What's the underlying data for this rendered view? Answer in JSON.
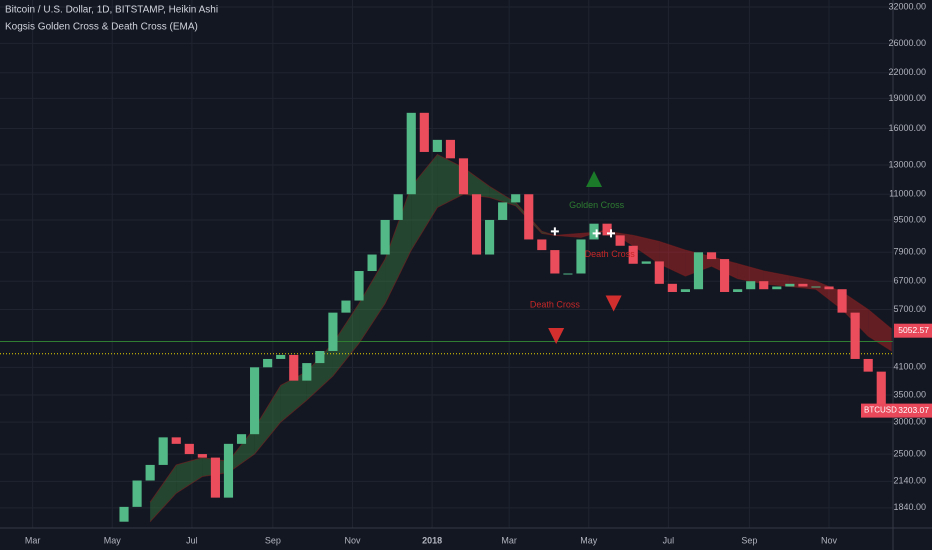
{
  "chart_data": {
    "type": "candlestick",
    "title": "Bitcoin / U.S. Dollar, 1D, BITSTAMP, Heikin Ashi",
    "subtitle": "Kogsis Golden Cross & Death Cross (EMA)",
    "log_scale": true,
    "grid": true,
    "up_color": "#53b987",
    "down_color": "#eb4d5c",
    "x": [
      70,
      80,
      90,
      100,
      110,
      120,
      130,
      140,
      150,
      160,
      170,
      180,
      190,
      200,
      210,
      220,
      230,
      240,
      250,
      260,
      270,
      280,
      290,
      300,
      310,
      320,
      330,
      340,
      350,
      360,
      370,
      380,
      390,
      400,
      410,
      420,
      430,
      440,
      450,
      460,
      470,
      480,
      490,
      500,
      510,
      520,
      530,
      540,
      550,
      560,
      570,
      580,
      590,
      600,
      610,
      620,
      630,
      640,
      650
    ],
    "open": [
      1700,
      1850,
      2150,
      2350,
      2750,
      2650,
      2500,
      2450,
      1950,
      2650,
      2800,
      4100,
      4300,
      4400,
      3800,
      4200,
      4500,
      5600,
      6000,
      7100,
      7800,
      9500,
      11000,
      17500,
      14000,
      15000,
      13500,
      11000,
      7800,
      9500,
      10500,
      11000,
      8500,
      8000,
      7000,
      7000,
      8500,
      9300,
      8700,
      8200,
      7400,
      7500,
      6600,
      6300,
      6400,
      7900,
      7600,
      6300,
      6400,
      6700,
      6400,
      6500,
      6600,
      6500,
      6500,
      6400,
      5600,
      4300,
      4000
    ],
    "close": [
      1850,
      2150,
      2350,
      2750,
      2650,
      2500,
      2450,
      1950,
      2650,
      2800,
      4100,
      4300,
      4400,
      3800,
      4200,
      4500,
      5600,
      6000,
      7100,
      7800,
      9500,
      11000,
      17500,
      14000,
      15000,
      13500,
      11000,
      7800,
      9500,
      10500,
      11000,
      8500,
      8000,
      7000,
      7000,
      8500,
      9300,
      8700,
      8200,
      7400,
      7500,
      6600,
      6300,
      6400,
      7900,
      7600,
      6300,
      6400,
      6700,
      6400,
      6500,
      6600,
      6500,
      6500,
      6400,
      5600,
      4300,
      4000,
      3300
    ],
    "bands": {
      "x": [
        90,
        110,
        130,
        150,
        170,
        190,
        210,
        230,
        250,
        270,
        290,
        310,
        330,
        350,
        370,
        390,
        400,
        420,
        440,
        460,
        480,
        500,
        520,
        540,
        560,
        580,
        600,
        620,
        640,
        658
      ],
      "fast": [
        1900,
        2350,
        2450,
        2400,
        2900,
        3700,
        4000,
        4700,
        5900,
        7600,
        11500,
        13800,
        12800,
        11500,
        10500,
        8900,
        8700,
        8600,
        9000,
        8200,
        7400,
        6900,
        7300,
        6800,
        6600,
        6500,
        6400,
        5700,
        4900,
        4500
      ],
      "slow": [
        1700,
        2000,
        2200,
        2250,
        2500,
        3000,
        3400,
        3900,
        4700,
        5900,
        8000,
        10200,
        11000,
        10800,
        10300,
        8800,
        8700,
        8800,
        8900,
        8700,
        8400,
        8000,
        7700,
        7400,
        7100,
        6900,
        6700,
        6300,
        5700,
        5100
      ],
      "golden_color": "#4caf50",
      "death_color": "#c62828"
    },
    "annotations": [
      {
        "text": "Golden Cross",
        "x": 432,
        "y": 10300,
        "color": "#2e7d32"
      },
      {
        "text": "Death Cross",
        "x": 400,
        "y": 5850,
        "color": "#c62828"
      },
      {
        "text": "Death Cross",
        "x": 442,
        "y": 7800,
        "color": "#c62828"
      }
    ],
    "arrows": [
      {
        "x": 430,
        "y": 12000,
        "direction": "up",
        "color": "#1b7a2a"
      },
      {
        "x": 401,
        "y": 4900,
        "direction": "down",
        "color": "#d32f2f"
      },
      {
        "x": 445,
        "y": 5900,
        "direction": "down",
        "color": "#d32f2f"
      }
    ],
    "cross_points": {
      "x": [
        400,
        432,
        443
      ],
      "y": [
        8900,
        8800,
        8800
      ]
    },
    "hlines": [
      {
        "value": 4750,
        "color": "#2e7d32"
      },
      {
        "value": 4430,
        "color": "#e6d300"
      }
    ],
    "price_tags": [
      {
        "value": 5052.57,
        "color": "#e8485a"
      },
      {
        "name": "BTCUSD",
        "value": 3203.07,
        "color": "#e8485a"
      }
    ],
    "xlim": [
      -25,
      659
    ],
    "ylim": [
      1640,
      33300
    ],
    "xticks": [
      {
        "value": 0,
        "label": "Mar"
      },
      {
        "value": 61,
        "label": "May"
      },
      {
        "value": 122,
        "label": "Jul"
      },
      {
        "value": 184,
        "label": "Sep"
      },
      {
        "value": 245,
        "label": "Nov"
      },
      {
        "value": 306,
        "label": "2018"
      },
      {
        "value": 365,
        "label": "Mar"
      },
      {
        "value": 426,
        "label": "May"
      },
      {
        "value": 487,
        "label": "Jul"
      },
      {
        "value": 549,
        "label": "Sep"
      },
      {
        "value": 610,
        "label": "Nov"
      }
    ],
    "yticks": [
      {
        "value": 32000,
        "label": "32000.00"
      },
      {
        "value": 26000,
        "label": "26000.00"
      },
      {
        "value": 22000,
        "label": "22000.00"
      },
      {
        "value": 19000,
        "label": "19000.00"
      },
      {
        "value": 16000,
        "label": "16000.00"
      },
      {
        "value": 13000,
        "label": "13000.00"
      },
      {
        "value": 11000,
        "label": "11000.00"
      },
      {
        "value": 9500,
        "label": "9500.00"
      },
      {
        "value": 7900,
        "label": "7900.00"
      },
      {
        "value": 6700,
        "label": "6700.00"
      },
      {
        "value": 5700,
        "label": "5700.00"
      },
      {
        "value": 4100,
        "label": "4100.00"
      },
      {
        "value": 3500,
        "label": "3500.00"
      },
      {
        "value": 3000,
        "label": "3000.00"
      },
      {
        "value": 2500,
        "label": "2500.00"
      },
      {
        "value": 2140,
        "label": "2140.00"
      },
      {
        "value": 1840,
        "label": "1840.00"
      }
    ]
  }
}
